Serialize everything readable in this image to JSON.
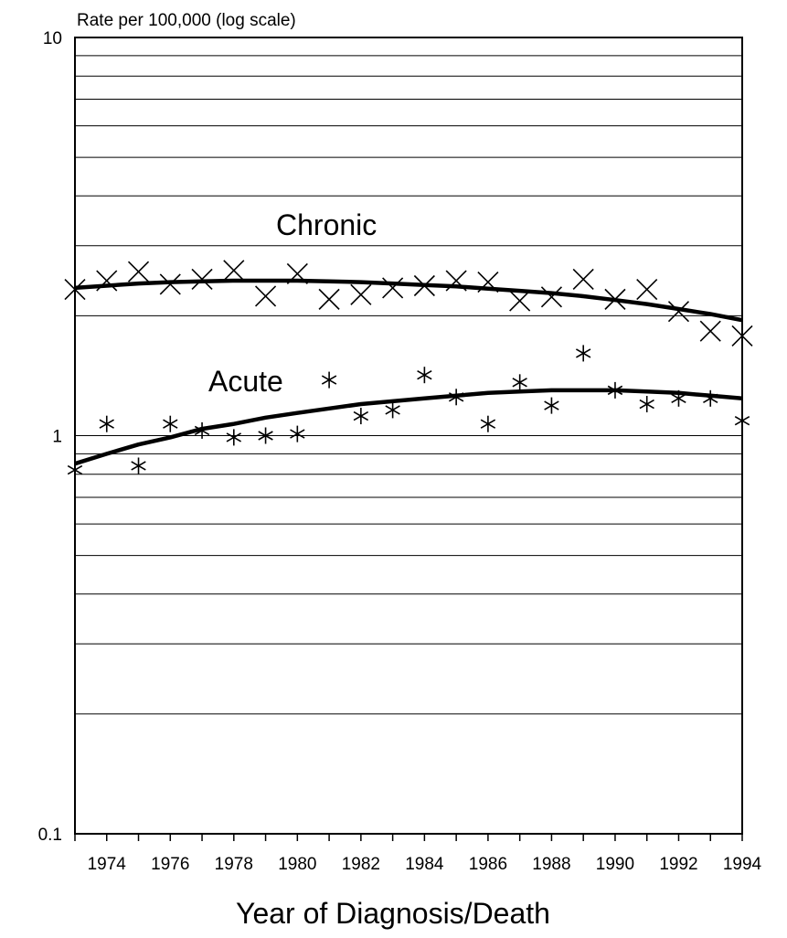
{
  "chart_data": {
    "type": "scatter",
    "title": "",
    "ylabel": "Rate per 100,000 (log scale)",
    "xlabel": "Year of Diagnosis/Death",
    "yscale": "log",
    "ylim": [
      0.1,
      10
    ],
    "xlim": [
      1973,
      1994
    ],
    "y_ticks": [
      "0.1",
      "1",
      "10"
    ],
    "x_ticks": [
      "1974",
      "1976",
      "1978",
      "1980",
      "1982",
      "1984",
      "1986",
      "1988",
      "1990",
      "1992",
      "1994"
    ],
    "grid": "horizontal",
    "series": [
      {
        "name": "Chronic",
        "marker": "x",
        "x": [
          1973,
          1974,
          1975,
          1976,
          1977,
          1978,
          1979,
          1980,
          1981,
          1982,
          1983,
          1984,
          1985,
          1986,
          1987,
          1988,
          1989,
          1990,
          1991,
          1992,
          1993,
          1994
        ],
        "values": [
          2.33,
          2.45,
          2.58,
          2.4,
          2.47,
          2.6,
          2.24,
          2.55,
          2.2,
          2.26,
          2.35,
          2.38,
          2.45,
          2.43,
          2.18,
          2.23,
          2.47,
          2.2,
          2.33,
          2.05,
          1.83,
          1.78
        ],
        "trend": [
          2.35,
          2.38,
          2.41,
          2.43,
          2.44,
          2.45,
          2.45,
          2.45,
          2.44,
          2.43,
          2.41,
          2.39,
          2.37,
          2.34,
          2.31,
          2.28,
          2.24,
          2.19,
          2.14,
          2.08,
          2.02,
          1.95
        ]
      },
      {
        "name": "Acute",
        "marker": "*",
        "x": [
          1973,
          1974,
          1975,
          1976,
          1977,
          1978,
          1979,
          1980,
          1981,
          1982,
          1983,
          1984,
          1985,
          1986,
          1987,
          1988,
          1989,
          1990,
          1991,
          1992,
          1993,
          1994
        ],
        "values": [
          0.82,
          1.07,
          0.84,
          1.07,
          1.03,
          0.99,
          1.0,
          1.01,
          1.38,
          1.12,
          1.16,
          1.42,
          1.25,
          1.07,
          1.36,
          1.19,
          1.61,
          1.3,
          1.2,
          1.24,
          1.24,
          1.09
        ],
        "trend": [
          0.85,
          0.9,
          0.95,
          0.99,
          1.04,
          1.07,
          1.11,
          1.14,
          1.17,
          1.2,
          1.22,
          1.24,
          1.26,
          1.28,
          1.29,
          1.3,
          1.3,
          1.3,
          1.29,
          1.28,
          1.26,
          1.24
        ]
      }
    ]
  }
}
